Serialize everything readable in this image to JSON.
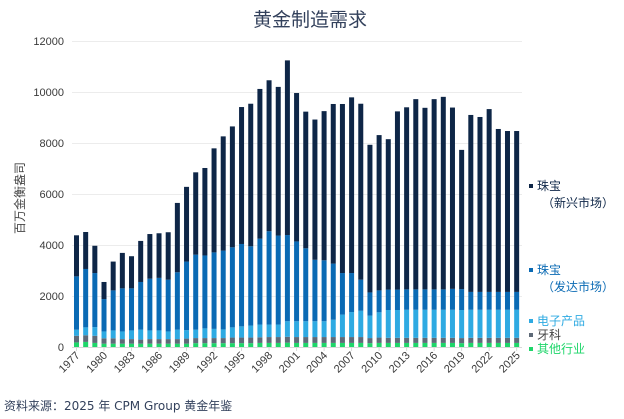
{
  "chart_data": {
    "type": "bar",
    "stacked": true,
    "title": "黄金制造需求",
    "xlabel": "",
    "ylabel": "百万金衡盎司",
    "ylim": [
      0,
      12000
    ],
    "yticks": [
      0,
      2000,
      4000,
      6000,
      8000,
      10000,
      12000
    ],
    "grid": true,
    "legend_position": "right",
    "source": "资料来源：2025 年 CPM Group 黄金年鉴",
    "categories": [
      1977,
      1978,
      1979,
      1980,
      1981,
      1982,
      1983,
      1984,
      1985,
      1986,
      1987,
      1988,
      1989,
      1990,
      1991,
      1992,
      1993,
      1994,
      1995,
      1996,
      1997,
      1998,
      1999,
      2000,
      2001,
      2002,
      2003,
      2004,
      2005,
      2006,
      2007,
      2008,
      2009,
      2010,
      2011,
      2012,
      2013,
      2014,
      2015,
      2016,
      2017,
      2018,
      2019,
      2020,
      2021,
      2022,
      2023,
      2024,
      2025
    ],
    "xtick_labels": [
      "1977",
      "1980",
      "1983",
      "1986",
      "1989",
      "1992",
      "1995",
      "1998",
      "2001",
      "2004",
      "2007",
      "2010",
      "2013",
      "2016",
      "2019",
      "2022",
      "2025"
    ],
    "series": [
      {
        "name": "其他行业",
        "color": "#1ed66a",
        "values": [
          180,
          200,
          160,
          130,
          130,
          130,
          130,
          130,
          130,
          130,
          130,
          130,
          130,
          150,
          150,
          150,
          150,
          150,
          150,
          150,
          160,
          160,
          160,
          170,
          160,
          160,
          160,
          160,
          160,
          160,
          160,
          160,
          150,
          160,
          160,
          160,
          160,
          160,
          160,
          160,
          160,
          160,
          150,
          160,
          160,
          160,
          160,
          160,
          160
        ]
      },
      {
        "name": "牙科",
        "color": "#5e6a78",
        "values": [
          260,
          260,
          280,
          210,
          210,
          180,
          180,
          160,
          180,
          180,
          180,
          180,
          200,
          200,
          200,
          200,
          200,
          220,
          220,
          220,
          220,
          230,
          230,
          230,
          230,
          230,
          230,
          230,
          230,
          230,
          230,
          230,
          200,
          210,
          200,
          200,
          200,
          200,
          200,
          200,
          200,
          200,
          200,
          200,
          200,
          200,
          200,
          200,
          200
        ]
      },
      {
        "name": "电子产品",
        "color": "#2eaae2",
        "values": [
          240,
          310,
          340,
          270,
          310,
          300,
          340,
          390,
          340,
          340,
          300,
          370,
          330,
          330,
          380,
          360,
          340,
          400,
          440,
          470,
          500,
          490,
          490,
          610,
          620,
          620,
          620,
          620,
          680,
          880,
          980,
          1030,
          880,
          990,
          1090,
          1090,
          1100,
          1100,
          1100,
          1100,
          1100,
          1100,
          1100,
          1100,
          1100,
          1100,
          1100,
          1100,
          1100
        ]
      },
      {
        "name": "珠宝（发达市场）",
        "color": "#0a6ab4",
        "values": [
          2090,
          2290,
          2120,
          1270,
          1570,
          1690,
          1650,
          1870,
          2030,
          2060,
          2030,
          2250,
          2690,
          2940,
          2860,
          3000,
          3090,
          3140,
          3230,
          3110,
          3370,
          3660,
          3490,
          3380,
          3130,
          2860,
          2410,
          2390,
          2200,
          1630,
          1530,
          1220,
          910,
          860,
          800,
          800,
          800,
          800,
          800,
          800,
          800,
          820,
          820,
          700,
          700,
          700,
          700,
          700,
          700
        ]
      },
      {
        "name": "珠宝（新兴市场）",
        "color": "#0e2647",
        "values": [
          1610,
          1450,
          1070,
          670,
          1130,
          1390,
          1260,
          1610,
          1750,
          1750,
          1860,
          2720,
          2930,
          3230,
          3430,
          4080,
          4480,
          4740,
          5370,
          5590,
          5870,
          5920,
          5830,
          6850,
          5820,
          5360,
          5500,
          5850,
          6260,
          6630,
          6890,
          6900,
          5790,
          6090,
          5900,
          6990,
          7140,
          7460,
          7120,
          7460,
          7550,
          7110,
          5460,
          6940,
          6860,
          7170,
          6390,
          6310,
          6310
        ]
      }
    ],
    "legend": [
      {
        "label_lines": [
          "珠宝",
          "（新兴市场）"
        ],
        "color": "#0e2647",
        "text_color": "#0e2647"
      },
      {
        "label_lines": [
          "珠宝",
          "（发达市场）"
        ],
        "color": "#0a6ab4",
        "text_color": "#0a6ab4"
      },
      {
        "label_lines": [
          "电子产品"
        ],
        "color": "#2eaae2",
        "text_color": "#2eaae2"
      },
      {
        "label_lines": [
          "牙科"
        ],
        "color": "#5e6a78",
        "text_color": "#444444"
      },
      {
        "label_lines": [
          "其他行业"
        ],
        "color": "#1ed66a",
        "text_color": "#1ed66a"
      }
    ]
  }
}
